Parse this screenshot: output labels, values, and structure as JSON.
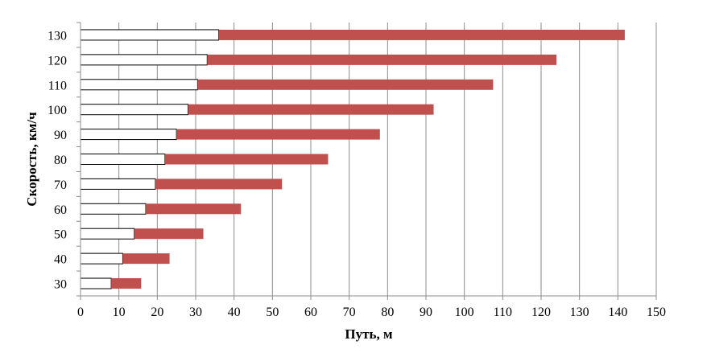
{
  "chart_data": {
    "type": "bar",
    "orientation": "horizontal",
    "stacked": true,
    "xlabel": "Путь, м",
    "ylabel": "Скорость, км/ч",
    "xlim": [
      0,
      150
    ],
    "xticks": [
      "0",
      "10",
      "20",
      "30",
      "40",
      "50",
      "60",
      "70",
      "80",
      "90",
      "100",
      "110",
      "120",
      "130",
      "140",
      "150"
    ],
    "categories": [
      "30",
      "40",
      "50",
      "60",
      "70",
      "80",
      "90",
      "100",
      "110",
      "120",
      "130"
    ],
    "grid": "vertical",
    "series": [
      {
        "color": "#ffffff",
        "stroke": "#000000",
        "values": [
          8,
          11,
          14,
          17,
          19.5,
          22,
          25,
          28,
          30.5,
          33,
          36
        ]
      },
      {
        "color": "#c0504d",
        "values": [
          7.8,
          12.2,
          18,
          24.8,
          33,
          42.5,
          53,
          64,
          77,
          91,
          105.8
        ]
      }
    ]
  }
}
